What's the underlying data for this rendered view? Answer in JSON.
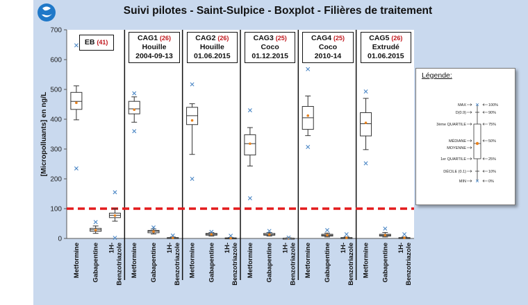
{
  "title": "Suivi pilotes - Saint-Sulpice - Boxplot  - Filières de traitement",
  "colors": {
    "background": "#c9d9ee",
    "median_marker": "#e8821e",
    "outlier": "#4a86c5",
    "threshold": "#e31a1c",
    "count": "#c0151b"
  },
  "chart_data": {
    "type": "boxplot",
    "title": "Suivi pilotes - Saint-Sulpice - Boxplot  - Filières de traitement",
    "ylabel": "[Micropolluants] en ng/L",
    "ylim": [
      0,
      700
    ],
    "yticks": [
      0,
      100,
      200,
      300,
      400,
      500,
      600,
      700
    ],
    "threshold": 100,
    "categories": [
      "Metformine",
      "Gabapentine",
      "1H-Benzotriazole"
    ],
    "x_tick_lines": [
      [
        "Metformine"
      ],
      [
        "Gabapentine"
      ],
      [
        "1H-",
        "Benzotriazole"
      ]
    ],
    "groups": [
      {
        "name": "EB",
        "count": "(41)",
        "lines": [],
        "boxes": [
          {
            "min": 398,
            "d1": 398,
            "q1": 433,
            "median": 460,
            "mean": 455,
            "q3": 490,
            "d9": 512,
            "max": 512,
            "outliers": [
              648,
              235
            ]
          },
          {
            "min": 17,
            "d1": 17,
            "q1": 24,
            "median": 29,
            "mean": 28,
            "q3": 34,
            "d9": 42,
            "max": 42,
            "outliers": [
              55
            ]
          },
          {
            "min": 58,
            "d1": 58,
            "q1": 70,
            "median": 78,
            "mean": 77,
            "q3": 85,
            "d9": 100,
            "max": 100,
            "outliers": [
              155,
              2
            ]
          }
        ]
      },
      {
        "name": "CAG1",
        "count": "(26)",
        "lines": [
          "Houille",
          "2004-09-13"
        ],
        "boxes": [
          {
            "min": 390,
            "d1": 390,
            "q1": 418,
            "median": 435,
            "mean": 432,
            "q3": 460,
            "d9": 475,
            "max": 475,
            "outliers": [
              487,
              360
            ]
          },
          {
            "min": 15,
            "d1": 15,
            "q1": 19,
            "median": 24,
            "mean": 23,
            "q3": 27,
            "d9": 32,
            "max": 32,
            "outliers": [
              37
            ]
          },
          {
            "min": 0,
            "d1": 0,
            "q1": 1,
            "median": 2,
            "mean": 2,
            "q3": 3,
            "d9": 5,
            "max": 5,
            "outliers": [
              10
            ]
          }
        ]
      },
      {
        "name": "CAG2",
        "count": "(26)",
        "lines": [
          "Houille",
          "01.06.2015"
        ],
        "boxes": [
          {
            "min": 282,
            "d1": 282,
            "q1": 382,
            "median": 412,
            "mean": 396,
            "q3": 440,
            "d9": 452,
            "max": 452,
            "outliers": [
              517,
              200
            ]
          },
          {
            "min": 8,
            "d1": 8,
            "q1": 11,
            "median": 14,
            "mean": 14,
            "q3": 17,
            "d9": 20,
            "max": 20,
            "outliers": [
              22
            ]
          },
          {
            "min": 0,
            "d1": 0,
            "q1": 1,
            "median": 1,
            "mean": 1,
            "q3": 2,
            "d9": 3,
            "max": 3,
            "outliers": [
              9
            ]
          }
        ]
      },
      {
        "name": "CAG3",
        "count": "(25)",
        "lines": [
          "Coco",
          "01.12.2015"
        ],
        "boxes": [
          {
            "min": 243,
            "d1": 243,
            "q1": 280,
            "median": 318,
            "mean": 318,
            "q3": 348,
            "d9": 372,
            "max": 372,
            "outliers": [
              430,
              135
            ]
          },
          {
            "min": 8,
            "d1": 8,
            "q1": 11,
            "median": 13,
            "mean": 13,
            "q3": 17,
            "d9": 20,
            "max": 20,
            "outliers": [
              25
            ]
          },
          {
            "min": 0,
            "d1": 0,
            "q1": 0,
            "median": 1,
            "mean": 1,
            "q3": 1,
            "d9": 2,
            "max": 2,
            "outliers": [
              3
            ]
          }
        ]
      },
      {
        "name": "CAG4",
        "count": "(25)",
        "lines": [
          "Coco",
          "2010-14"
        ],
        "boxes": [
          {
            "min": 345,
            "d1": 345,
            "q1": 366,
            "median": 405,
            "mean": 412,
            "q3": 443,
            "d9": 478,
            "max": 478,
            "outliers": [
              568,
              307
            ]
          },
          {
            "min": 5,
            "d1": 5,
            "q1": 8,
            "median": 11,
            "mean": 11,
            "q3": 14,
            "d9": 18,
            "max": 18,
            "outliers": [
              28
            ]
          },
          {
            "min": 0,
            "d1": 0,
            "q1": 1,
            "median": 2,
            "mean": 2,
            "q3": 3,
            "d9": 5,
            "max": 5,
            "outliers": [
              14
            ]
          }
        ]
      },
      {
        "name": "CAG5",
        "count": "(26)",
        "lines": [
          "Extrudé",
          "01.06.2015"
        ],
        "boxes": [
          {
            "min": 298,
            "d1": 298,
            "q1": 344,
            "median": 385,
            "mean": 388,
            "q3": 422,
            "d9": 470,
            "max": 470,
            "outliers": [
              493,
              252
            ]
          },
          {
            "min": 5,
            "d1": 5,
            "q1": 8,
            "median": 11,
            "mean": 11,
            "q3": 14,
            "d9": 20,
            "max": 20,
            "outliers": [
              33
            ]
          },
          {
            "min": 0,
            "d1": 0,
            "q1": 1,
            "median": 2,
            "mean": 2,
            "q3": 3,
            "d9": 5,
            "max": 5,
            "outliers": [
              14
            ]
          }
        ]
      }
    ],
    "legend": {
      "title": "Légende:",
      "items": [
        {
          "left": "MAX",
          "right": "100%"
        },
        {
          "left": "D(0.9)",
          "right": "90%"
        },
        {
          "left": "3ème QUARTILE",
          "right": "75%"
        },
        {
          "left": "MÉDIANE",
          "right": "50%"
        },
        {
          "left": "MOYENNE",
          "right": ""
        },
        {
          "left": "1er QUARTILE",
          "right": "25%"
        },
        {
          "left": "DÉCILE (0.1)",
          "right": "10%"
        },
        {
          "left": "MIN",
          "right": "0%"
        }
      ]
    }
  }
}
